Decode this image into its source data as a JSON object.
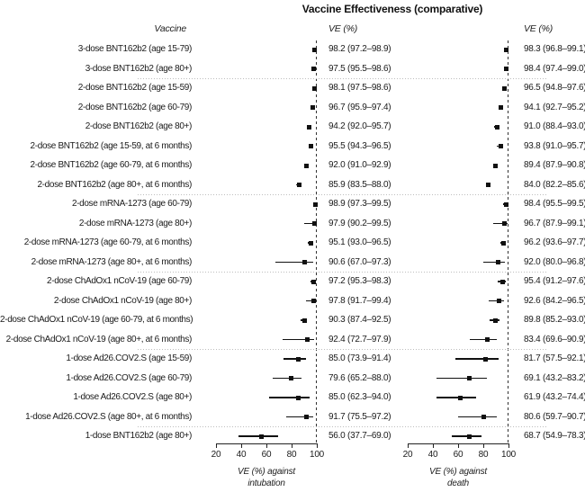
{
  "title": "Vaccine Effectiveness (comparative)",
  "columns": {
    "vaccine_header": "Vaccine",
    "ve_header_intubation": "VE (%)",
    "ve_header_death": "VE (%)"
  },
  "colors": {
    "marker": "#111111",
    "reference_line": "#333333",
    "separator": "#bdbdbd",
    "text": "#1a1a1a"
  },
  "chart_data": {
    "type": "forest",
    "value_format": "point (lo–hi)",
    "axis": {
      "min": 20,
      "max": 100,
      "ticks": [
        20,
        40,
        60,
        80,
        100
      ],
      "reference_value": 100,
      "grid": "off"
    },
    "panels": [
      {
        "key": "intubation",
        "xlabel_lines": [
          "VE (%) against",
          "intubation"
        ]
      },
      {
        "key": "death",
        "xlabel_lines": [
          "VE (%) against",
          "death"
        ]
      }
    ],
    "rows": [
      {
        "label": "3-dose BNT162b2 (age 15-79)",
        "intubation": {
          "ve": 98.2,
          "lo": 97.2,
          "hi": 98.9
        },
        "death": {
          "ve": 98.3,
          "lo": 96.8,
          "hi": 99.1
        },
        "separator_after": false
      },
      {
        "label": "3-dose BNT162b2 (age 80+)",
        "intubation": {
          "ve": 97.5,
          "lo": 95.5,
          "hi": 98.6
        },
        "death": {
          "ve": 98.4,
          "lo": 97.4,
          "hi": 99.0
        },
        "separator_after": true
      },
      {
        "label": "2-dose BNT162b2 (age 15-59)",
        "intubation": {
          "ve": 98.1,
          "lo": 97.5,
          "hi": 98.6
        },
        "death": {
          "ve": 96.5,
          "lo": 94.8,
          "hi": 97.6
        },
        "separator_after": false
      },
      {
        "label": "2-dose BNT162b2 (age 60-79)",
        "intubation": {
          "ve": 96.7,
          "lo": 95.9,
          "hi": 97.4
        },
        "death": {
          "ve": 94.1,
          "lo": 92.7,
          "hi": 95.2
        },
        "separator_after": false
      },
      {
        "label": "2-dose BNT162b2 (age 80+)",
        "intubation": {
          "ve": 94.2,
          "lo": 92.0,
          "hi": 95.7
        },
        "death": {
          "ve": 91.0,
          "lo": 88.4,
          "hi": 93.0
        },
        "separator_after": false
      },
      {
        "label": "2-dose BNT162b2 (age 15-59, at 6 months)",
        "intubation": {
          "ve": 95.5,
          "lo": 94.3,
          "hi": 96.5
        },
        "death": {
          "ve": 93.8,
          "lo": 91.0,
          "hi": 95.7
        },
        "separator_after": false
      },
      {
        "label": "2-dose BNT162b2 (age 60-79, at 6 months)",
        "intubation": {
          "ve": 92.0,
          "lo": 91.0,
          "hi": 92.9
        },
        "death": {
          "ve": 89.4,
          "lo": 87.9,
          "hi": 90.8
        },
        "separator_after": false
      },
      {
        "label": "2-dose BNT162b2 (age 80+, at 6 months)",
        "intubation": {
          "ve": 85.9,
          "lo": 83.5,
          "hi": 88.0
        },
        "death": {
          "ve": 84.0,
          "lo": 82.2,
          "hi": 85.6
        },
        "separator_after": true
      },
      {
        "label": "2-dose mRNA-1273 (age 60-79)",
        "intubation": {
          "ve": 98.9,
          "lo": 97.3,
          "hi": 99.5
        },
        "death": {
          "ve": 98.4,
          "lo": 95.5,
          "hi": 99.5
        },
        "separator_after": false
      },
      {
        "label": "2-dose mRNA-1273 (age 80+)",
        "intubation": {
          "ve": 97.9,
          "lo": 90.2,
          "hi": 99.5
        },
        "death": {
          "ve": 96.7,
          "lo": 87.9,
          "hi": 99.1
        },
        "separator_after": false
      },
      {
        "label": "2-dose mRNA-1273 (age 60-79, at 6 months)",
        "intubation": {
          "ve": 95.1,
          "lo": 93.0,
          "hi": 96.5
        },
        "death": {
          "ve": 96.2,
          "lo": 93.6,
          "hi": 97.7
        },
        "separator_after": false
      },
      {
        "label": "2-dose mRNA-1273 (age 80+, at 6 months)",
        "intubation": {
          "ve": 90.6,
          "lo": 67.0,
          "hi": 97.3
        },
        "death": {
          "ve": 92.0,
          "lo": 80.0,
          "hi": 96.8
        },
        "separator_after": true
      },
      {
        "label": "2-dose ChAdOx1 nCoV-19 (age 60-79)",
        "intubation": {
          "ve": 97.2,
          "lo": 95.3,
          "hi": 98.3
        },
        "death": {
          "ve": 95.4,
          "lo": 91.2,
          "hi": 97.6
        },
        "separator_after": false
      },
      {
        "label": "2-dose ChAdOx1 nCoV-19 (age 80+)",
        "intubation": {
          "ve": 97.8,
          "lo": 91.7,
          "hi": 99.4
        },
        "death": {
          "ve": 92.6,
          "lo": 84.2,
          "hi": 96.5
        },
        "separator_after": false
      },
      {
        "label": "2-dose ChAdOx1 nCoV-19 (age 60-79, at 6 months)",
        "intubation": {
          "ve": 90.3,
          "lo": 87.4,
          "hi": 92.5
        },
        "death": {
          "ve": 89.8,
          "lo": 85.2,
          "hi": 93.0
        },
        "separator_after": false
      },
      {
        "label": "2-dose ChAdOx1 nCoV-19 (age 80+, at 6 months)",
        "intubation": {
          "ve": 92.4,
          "lo": 72.7,
          "hi": 97.9
        },
        "death": {
          "ve": 83.4,
          "lo": 69.6,
          "hi": 90.9
        },
        "separator_after": true
      },
      {
        "label": "1-dose Ad26.COV2.S (age 15-59)",
        "intubation": {
          "ve": 85.0,
          "lo": 73.9,
          "hi": 91.4
        },
        "death": {
          "ve": 81.7,
          "lo": 57.5,
          "hi": 92.1
        },
        "separator_after": false
      },
      {
        "label": "1-dose Ad26.COV2.S (age 60-79)",
        "intubation": {
          "ve": 79.6,
          "lo": 65.2,
          "hi": 88.0
        },
        "death": {
          "ve": 69.1,
          "lo": 43.2,
          "hi": 83.2
        },
        "separator_after": false
      },
      {
        "label": "1-dose Ad26.COV2.S (age 80+)",
        "intubation": {
          "ve": 85.0,
          "lo": 62.3,
          "hi": 94.0
        },
        "death": {
          "ve": 61.9,
          "lo": 43.2,
          "hi": 74.4
        },
        "separator_after": false
      },
      {
        "label": "1-dose Ad26.COV2.S (age 80+, at 6 months)",
        "intubation": {
          "ve": 91.7,
          "lo": 75.5,
          "hi": 97.2
        },
        "death": {
          "ve": 80.6,
          "lo": 59.7,
          "hi": 90.7
        },
        "separator_after": true
      },
      {
        "label": "1-dose BNT162b2 (age 80+)",
        "intubation": {
          "ve": 56.0,
          "lo": 37.7,
          "hi": 69.0
        },
        "death": {
          "ve": 68.7,
          "lo": 54.9,
          "hi": 78.3
        },
        "separator_after": false
      }
    ]
  }
}
